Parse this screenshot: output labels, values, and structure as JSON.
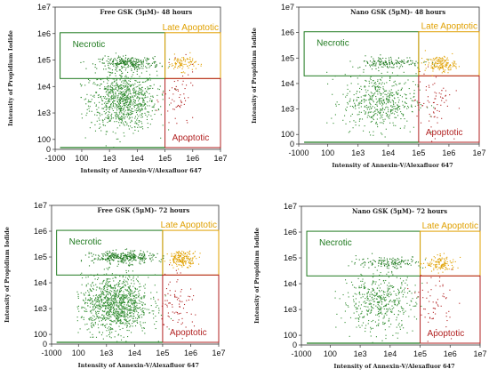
{
  "colors": {
    "necrotic": "#1f7a1f",
    "late_apoptotic": "#e0a000",
    "apoptotic": "#b22222",
    "live_dots": "#2e8b2e",
    "axis": "#333333"
  },
  "chart_data": [
    {
      "type": "scatter",
      "title": "Free GSK (5μM)- 48 hours",
      "xlabel": "Intensity of Annexin-V/Alexafluor 647",
      "ylabel": "Intensity of Propidium Iodide",
      "x_ticks": [
        "-1000",
        "100",
        "1e3",
        "1e4",
        "1e5",
        "1e6",
        "1e7"
      ],
      "y_ticks": [
        "1e7",
        "1e6",
        "1e5",
        "1e4",
        "1e3",
        "100",
        "0"
      ],
      "x_scale": "biexponential",
      "y_scale": "biexponential",
      "gates": {
        "necrotic": "Necrotic",
        "late_apoptotic": "Late Apoptotic",
        "apoptotic": "Apoptotic"
      },
      "gate_boundaries": {
        "x_split": 100000.0,
        "y_split": 20000.0
      },
      "populations": [
        {
          "name": "live",
          "n": 900,
          "x_center": 3000.0,
          "y_center": 3000.0
        },
        {
          "name": "necrotic",
          "n": 260,
          "x_center": 5000.0,
          "y_center": 80000.0
        },
        {
          "name": "late_apoptotic",
          "n": 90,
          "x_center": 400000.0,
          "y_center": 80000.0
        },
        {
          "name": "apoptotic",
          "n": 60,
          "x_center": 300000.0,
          "y_center": 3000.0
        }
      ]
    },
    {
      "type": "scatter",
      "title": "Nano GSK (5μM)- 48 hours",
      "xlabel": "Intensity of Annexin-V/Alexafluor 647",
      "ylabel": "Intensity of Propidium Iodide",
      "x_ticks": [
        "-1000",
        "100",
        "1e3",
        "1e4",
        "1e5",
        "1e6",
        "1e7"
      ],
      "y_ticks": [
        "1e7",
        "1e6",
        "1e5",
        "1e4",
        "1e3",
        "100",
        "0"
      ],
      "x_scale": "biexponential",
      "y_scale": "biexponential",
      "gates": {
        "necrotic": "Necrotic",
        "late_apoptotic": "Late Apoptotic",
        "apoptotic": "Apoptotic"
      },
      "gate_boundaries": {
        "x_split": 100000.0,
        "y_split": 20000.0
      },
      "populations": [
        {
          "name": "live",
          "n": 500,
          "x_center": 5000.0,
          "y_center": 2000.0
        },
        {
          "name": "necrotic",
          "n": 150,
          "x_center": 10000.0,
          "y_center": 70000.0
        },
        {
          "name": "late_apoptotic",
          "n": 160,
          "x_center": 500000.0,
          "y_center": 60000.0
        },
        {
          "name": "apoptotic",
          "n": 70,
          "x_center": 300000.0,
          "y_center": 2000.0
        }
      ]
    },
    {
      "type": "scatter",
      "title": "Free GSK (5μM)- 72 hours",
      "xlabel": "Intensity of Annexin-V/Alexafluor 647",
      "ylabel": "Intensity of Propidium Iodide",
      "x_ticks": [
        "-1000",
        "100",
        "1e3",
        "1e4",
        "1e5",
        "1e6",
        "1e7"
      ],
      "y_ticks": [
        "1e7",
        "1e6",
        "1e5",
        "1e4",
        "1e3",
        "100",
        "0"
      ],
      "x_scale": "biexponential",
      "y_scale": "biexponential",
      "gates": {
        "necrotic": "Necrotic",
        "late_apoptotic": "Late Apoptotic",
        "apoptotic": "Apoptotic"
      },
      "gate_boundaries": {
        "x_split": 100000.0,
        "y_split": 20000.0
      },
      "populations": [
        {
          "name": "live",
          "n": 1100,
          "x_center": 2000.0,
          "y_center": 1500.0
        },
        {
          "name": "necrotic",
          "n": 320,
          "x_center": 4000.0,
          "y_center": 100000.0
        },
        {
          "name": "late_apoptotic",
          "n": 180,
          "x_center": 500000.0,
          "y_center": 90000.0
        },
        {
          "name": "apoptotic",
          "n": 80,
          "x_center": 300000.0,
          "y_center": 2000.0
        }
      ]
    },
    {
      "type": "scatter",
      "title": "Nano GSK (5μM)- 72 hours",
      "xlabel": "Intensity of Annexin-V/Alexafluor 647",
      "ylabel": "Intensity of Propidium Iodide",
      "x_ticks": [
        "-1000",
        "100",
        "1e3",
        "1e4",
        "1e5",
        "1e6",
        "1e7"
      ],
      "y_ticks": [
        "1e7",
        "1e6",
        "1e5",
        "1e4",
        "1e3",
        "100",
        "0"
      ],
      "x_scale": "biexponential",
      "y_scale": "biexponential",
      "gates": {
        "necrotic": "Necrotic",
        "late_apoptotic": "Late Apoptotic",
        "apoptotic": "Apoptotic"
      },
      "gate_boundaries": {
        "x_split": 100000.0,
        "y_split": 20000.0
      },
      "populations": [
        {
          "name": "live",
          "n": 450,
          "x_center": 4000.0,
          "y_center": 2000.0
        },
        {
          "name": "necrotic",
          "n": 140,
          "x_center": 10000.0,
          "y_center": 70000.0
        },
        {
          "name": "late_apoptotic",
          "n": 120,
          "x_center": 500000.0,
          "y_center": 60000.0
        },
        {
          "name": "apoptotic",
          "n": 60,
          "x_center": 300000.0,
          "y_center": 2000.0
        }
      ]
    }
  ]
}
